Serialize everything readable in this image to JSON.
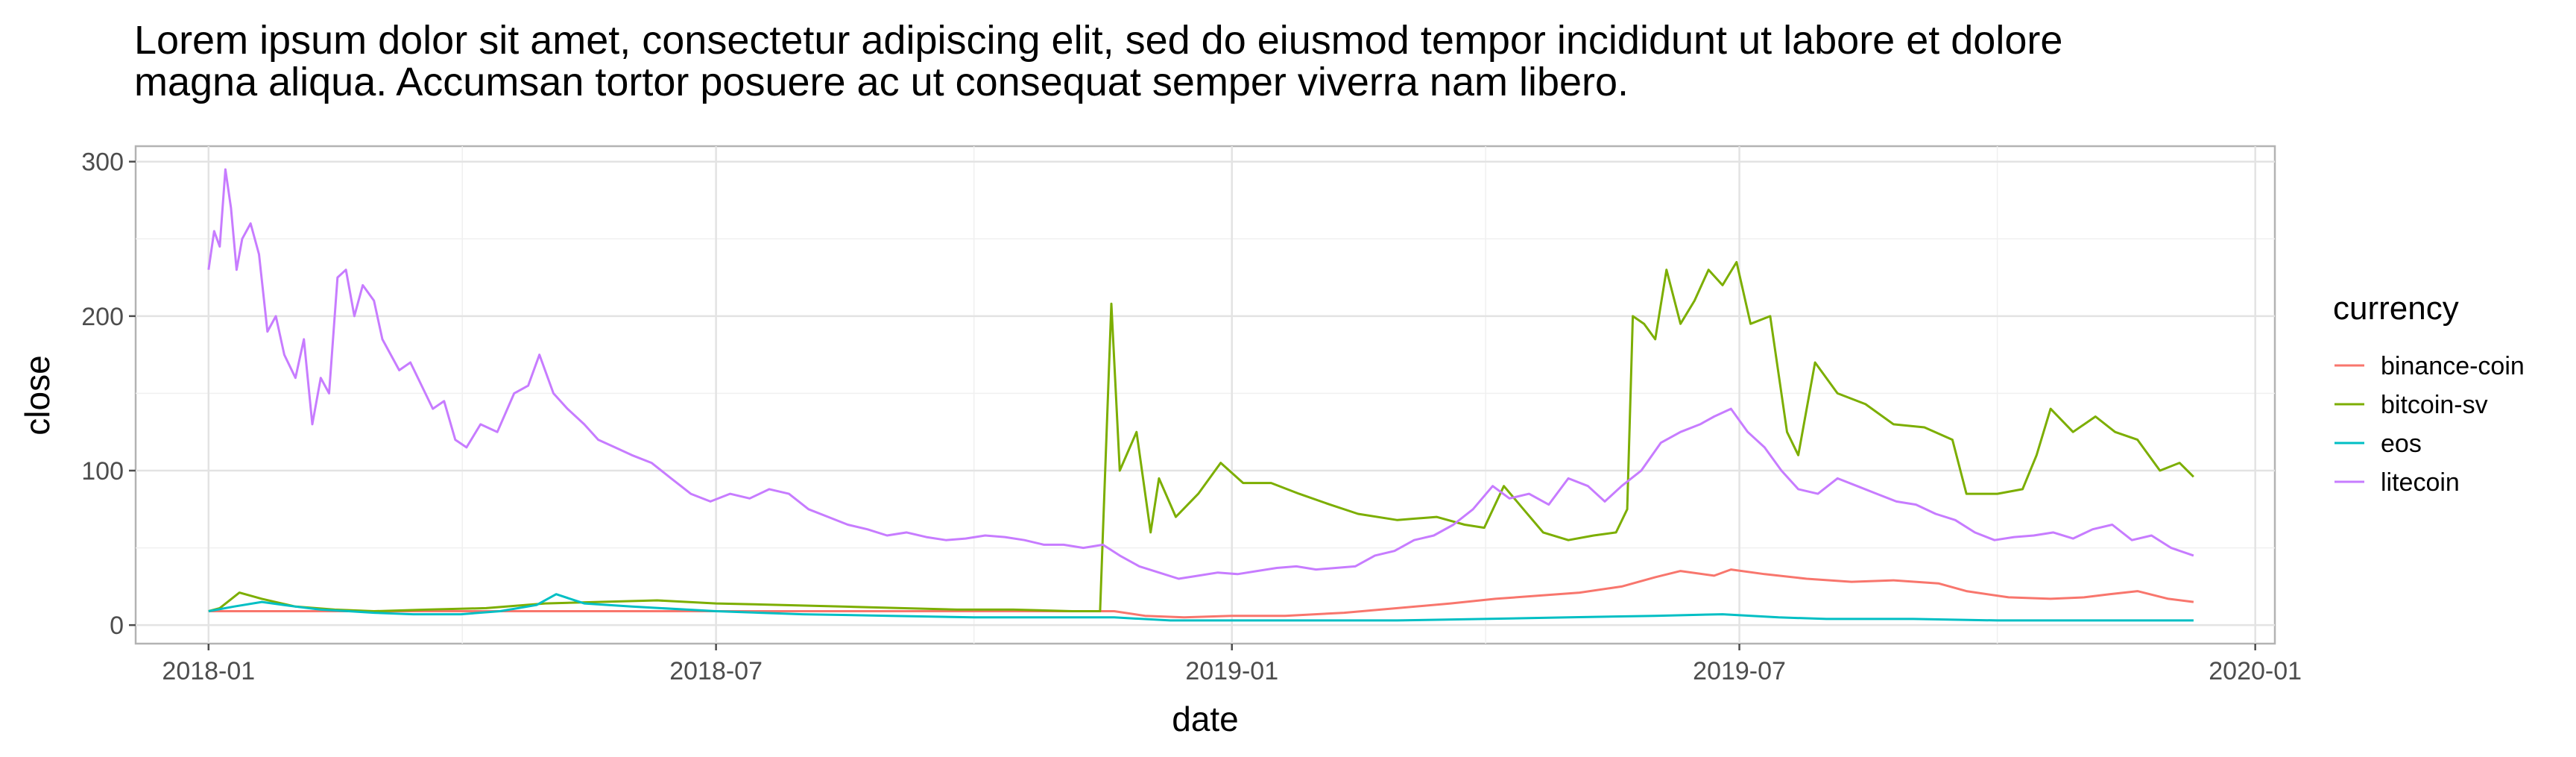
{
  "chart_data": {
    "type": "line",
    "title": "Lorem ipsum dolor sit amet, consectetur adipiscing elit, sed do eiusmod tempor incididunt ut labore et dolore magna aliqua. Accumsan tortor posuere ac ut consequat semper viverra nam libero.",
    "title_lines": [
      "Lorem ipsum dolor sit amet, consectetur adipiscing elit, sed do eiusmod tempor incididunt ut labore et dolore",
      "magna aliqua. Accumsan tortor posuere ac ut consequat semper viverra nam libero."
    ],
    "xlabel": "date",
    "ylabel": "close",
    "x_ticks": [
      "2018-01",
      "2018-07",
      "2019-01",
      "2019-07",
      "2020-01"
    ],
    "y_ticks": [
      0,
      100,
      200,
      300
    ],
    "xlim": [
      "2017-12-06",
      "2020-01-08"
    ],
    "ylim": [
      -12,
      310
    ],
    "grid": true,
    "legend": {
      "title": "currency",
      "position": "right"
    },
    "series": [
      {
        "name": "binance-coin",
        "color": "#F8766D",
        "x": [
          "2018-01-01",
          "2018-03-01",
          "2018-06-01",
          "2018-09-01",
          "2018-11-20",
          "2018-12-01",
          "2018-12-15",
          "2019-01-01",
          "2019-01-20",
          "2019-02-10",
          "2019-03-01",
          "2019-03-20",
          "2019-04-05",
          "2019-04-20",
          "2019-05-05",
          "2019-05-20",
          "2019-06-01",
          "2019-06-10",
          "2019-06-22",
          "2019-06-28",
          "2019-07-10",
          "2019-07-25",
          "2019-08-10",
          "2019-08-25",
          "2019-09-10",
          "2019-09-20",
          "2019-10-05",
          "2019-10-20",
          "2019-11-01",
          "2019-11-10",
          "2019-11-20",
          "2019-12-01",
          "2019-12-10"
        ],
        "y": [
          9,
          9,
          9,
          9,
          9,
          6,
          5,
          6,
          6,
          8,
          11,
          14,
          17,
          19,
          21,
          25,
          31,
          35,
          32,
          36,
          33,
          30,
          28,
          29,
          27,
          22,
          18,
          17,
          18,
          20,
          22,
          17,
          15
        ]
      },
      {
        "name": "bitcoin-sv",
        "color": "#7CAE00",
        "x": [
          "2018-01-01",
          "2018-01-05",
          "2018-01-12",
          "2018-01-20",
          "2018-02-01",
          "2018-02-15",
          "2018-03-01",
          "2018-03-20",
          "2018-04-10",
          "2018-05-01",
          "2018-05-20",
          "2018-06-10",
          "2018-07-01",
          "2018-07-25",
          "2018-08-15",
          "2018-09-05",
          "2018-09-25",
          "2018-10-15",
          "2018-11-05",
          "2018-11-15",
          "2018-11-16",
          "2018-11-19",
          "2018-11-22",
          "2018-11-28",
          "2018-12-03",
          "2018-12-06",
          "2018-12-12",
          "2018-12-20",
          "2018-12-28",
          "2019-01-05",
          "2019-01-15",
          "2019-01-25",
          "2019-02-05",
          "2019-02-15",
          "2019-03-01",
          "2019-03-15",
          "2019-03-25",
          "2019-04-01",
          "2019-04-08",
          "2019-04-15",
          "2019-04-22",
          "2019-05-01",
          "2019-05-10",
          "2019-05-18",
          "2019-05-22",
          "2019-05-24",
          "2019-05-28",
          "2019-06-01",
          "2019-06-05",
          "2019-06-10",
          "2019-06-15",
          "2019-06-20",
          "2019-06-25",
          "2019-06-30",
          "2019-07-05",
          "2019-07-12",
          "2019-07-18",
          "2019-07-22",
          "2019-07-28",
          "2019-08-05",
          "2019-08-15",
          "2019-08-25",
          "2019-09-05",
          "2019-09-15",
          "2019-09-20",
          "2019-09-25",
          "2019-10-01",
          "2019-10-10",
          "2019-10-15",
          "2019-10-20",
          "2019-10-28",
          "2019-11-05",
          "2019-11-12",
          "2019-11-20",
          "2019-11-28",
          "2019-12-05",
          "2019-12-10"
        ],
        "y": [
          9,
          11,
          21,
          17,
          12,
          10,
          9,
          10,
          11,
          14,
          15,
          16,
          14,
          13,
          12,
          11,
          10,
          10,
          9,
          9,
          60,
          208,
          100,
          125,
          60,
          95,
          70,
          85,
          105,
          92,
          92,
          85,
          78,
          72,
          68,
          70,
          65,
          63,
          90,
          75,
          60,
          55,
          58,
          60,
          75,
          200,
          195,
          185,
          230,
          195,
          210,
          230,
          220,
          235,
          195,
          200,
          125,
          110,
          170,
          150,
          143,
          130,
          128,
          120,
          85,
          85,
          85,
          88,
          110,
          140,
          125,
          135,
          125,
          120,
          100,
          105,
          96
        ]
      },
      {
        "name": "eos",
        "color": "#00BFC4",
        "x": [
          "2018-01-01",
          "2018-01-10",
          "2018-01-20",
          "2018-02-01",
          "2018-02-10",
          "2018-02-20",
          "2018-03-01",
          "2018-03-15",
          "2018-04-01",
          "2018-04-15",
          "2018-04-28",
          "2018-05-05",
          "2018-05-15",
          "2018-06-01",
          "2018-07-01",
          "2018-08-01",
          "2018-09-01",
          "2018-10-01",
          "2018-11-01",
          "2018-11-20",
          "2018-12-10",
          "2019-01-01",
          "2019-02-01",
          "2019-03-01",
          "2019-04-01",
          "2019-05-01",
          "2019-06-01",
          "2019-06-25",
          "2019-07-15",
          "2019-08-01",
          "2019-09-01",
          "2019-10-01",
          "2019-11-01",
          "2019-12-10"
        ],
        "y": [
          9,
          12,
          15,
          12,
          10,
          9,
          8,
          7,
          7,
          9,
          13,
          20,
          14,
          12,
          9,
          7,
          6,
          5,
          5,
          5,
          3,
          3,
          3,
          3,
          4,
          5,
          6,
          7,
          5,
          4,
          4,
          3,
          3,
          3
        ]
      },
      {
        "name": "litecoin",
        "color": "#C77CFF",
        "x": [
          "2018-01-01",
          "2018-01-03",
          "2018-01-05",
          "2018-01-07",
          "2018-01-09",
          "2018-01-11",
          "2018-01-13",
          "2018-01-16",
          "2018-01-19",
          "2018-01-22",
          "2018-01-25",
          "2018-01-28",
          "2018-02-01",
          "2018-02-04",
          "2018-02-07",
          "2018-02-10",
          "2018-02-13",
          "2018-02-16",
          "2018-02-19",
          "2018-02-22",
          "2018-02-25",
          "2018-03-01",
          "2018-03-04",
          "2018-03-07",
          "2018-03-10",
          "2018-03-14",
          "2018-03-18",
          "2018-03-22",
          "2018-03-26",
          "2018-03-30",
          "2018-04-03",
          "2018-04-08",
          "2018-04-14",
          "2018-04-20",
          "2018-04-25",
          "2018-04-29",
          "2018-05-04",
          "2018-05-09",
          "2018-05-15",
          "2018-05-20",
          "2018-05-26",
          "2018-06-01",
          "2018-06-08",
          "2018-06-15",
          "2018-06-22",
          "2018-06-29",
          "2018-07-06",
          "2018-07-13",
          "2018-07-20",
          "2018-07-27",
          "2018-08-03",
          "2018-08-10",
          "2018-08-17",
          "2018-08-24",
          "2018-08-31",
          "2018-09-07",
          "2018-09-14",
          "2018-09-21",
          "2018-09-28",
          "2018-10-05",
          "2018-10-12",
          "2018-10-19",
          "2018-10-26",
          "2018-11-02",
          "2018-11-09",
          "2018-11-16",
          "2018-11-22",
          "2018-11-29",
          "2018-12-06",
          "2018-12-13",
          "2018-12-20",
          "2018-12-27",
          "2019-01-03",
          "2019-01-10",
          "2019-01-17",
          "2019-01-24",
          "2019-01-31",
          "2019-02-07",
          "2019-02-14",
          "2019-02-21",
          "2019-02-28",
          "2019-03-07",
          "2019-03-14",
          "2019-03-21",
          "2019-03-28",
          "2019-04-04",
          "2019-04-10",
          "2019-04-17",
          "2019-04-24",
          "2019-05-01",
          "2019-05-08",
          "2019-05-14",
          "2019-05-20",
          "2019-05-27",
          "2019-06-03",
          "2019-06-10",
          "2019-06-17",
          "2019-06-22",
          "2019-06-28",
          "2019-07-04",
          "2019-07-10",
          "2019-07-16",
          "2019-07-22",
          "2019-07-29",
          "2019-08-05",
          "2019-08-12",
          "2019-08-19",
          "2019-08-26",
          "2019-09-02",
          "2019-09-09",
          "2019-09-16",
          "2019-09-23",
          "2019-09-30",
          "2019-10-07",
          "2019-10-14",
          "2019-10-21",
          "2019-10-28",
          "2019-11-04",
          "2019-11-11",
          "2019-11-18",
          "2019-11-25",
          "2019-12-02",
          "2019-12-10"
        ],
        "y": [
          230,
          255,
          245,
          295,
          270,
          230,
          250,
          260,
          240,
          190,
          200,
          175,
          160,
          185,
          130,
          160,
          150,
          225,
          230,
          200,
          220,
          210,
          185,
          175,
          165,
          170,
          155,
          140,
          145,
          120,
          115,
          130,
          125,
          150,
          155,
          175,
          150,
          140,
          130,
          120,
          115,
          110,
          105,
          95,
          85,
          80,
          85,
          82,
          88,
          85,
          75,
          70,
          65,
          62,
          58,
          60,
          57,
          55,
          56,
          58,
          57,
          55,
          52,
          52,
          50,
          52,
          45,
          38,
          34,
          30,
          32,
          34,
          33,
          35,
          37,
          38,
          36,
          37,
          38,
          45,
          48,
          55,
          58,
          65,
          75,
          90,
          82,
          85,
          78,
          95,
          90,
          80,
          90,
          100,
          118,
          125,
          130,
          135,
          140,
          125,
          115,
          100,
          88,
          85,
          95,
          90,
          85,
          80,
          78,
          72,
          68,
          60,
          55,
          57,
          58,
          60,
          56,
          62,
          65,
          55,
          58,
          50,
          45
        ]
      }
    ]
  }
}
